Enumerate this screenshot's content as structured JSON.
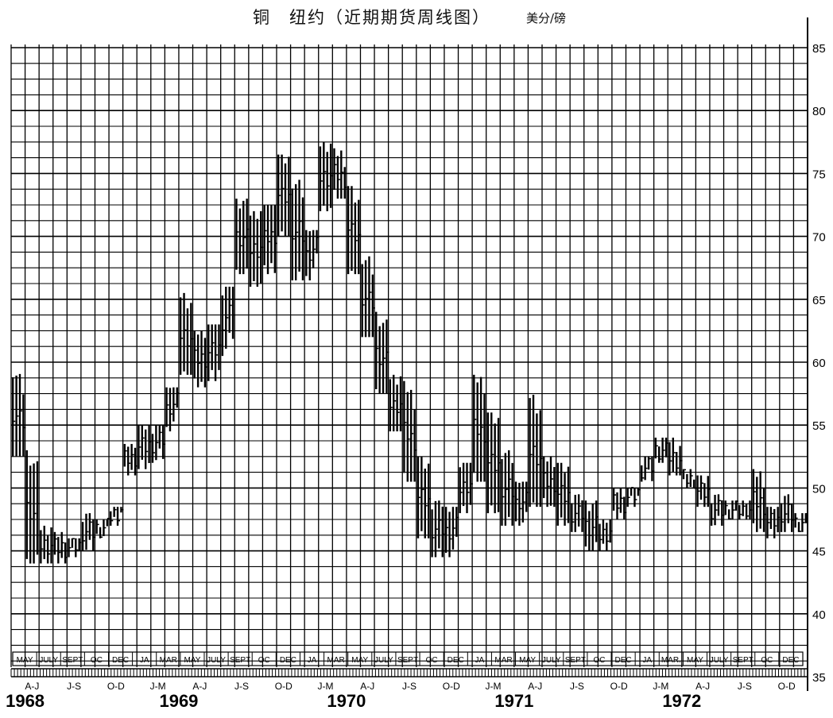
{
  "title": "铜　纽约（近期期货周线图）",
  "unit": "美分/磅",
  "chart_data": {
    "type": "bar",
    "bar_style": "weekly high-low range bars",
    "title": "铜　纽约（近期期货周线图）",
    "ylabel": "美分/磅",
    "ylim": [
      35,
      85
    ],
    "yticks": [
      35,
      40,
      45,
      50,
      55,
      60,
      65,
      70,
      75,
      80,
      85
    ],
    "ytick_labels": [
      "35",
      "40",
      "45",
      "50",
      "55",
      "60",
      "65",
      "70",
      "75",
      "80",
      "85"
    ],
    "y_axis_side": "right",
    "grid": true,
    "contract_months": [
      "MAY",
      "JULY",
      "SEPT",
      "OC",
      "DEC",
      "JA",
      "MAR",
      "MAY",
      "JULY",
      "SEPT",
      "OC",
      "DEC",
      "JA",
      "MAR",
      "MAY",
      "JULY",
      "SEPT",
      "OC",
      "DEC",
      "JA",
      "MAR",
      "MAY",
      "JULY",
      "SEPT",
      "OC",
      "DEC",
      "JA",
      "MAR.",
      "MAY",
      "JULY",
      "SEPT",
      "OC",
      "DEC"
    ],
    "quarter_labels": [
      "A-J",
      "J-S",
      "O-D",
      "J-M",
      "A-J",
      "J-S",
      "O-D",
      "J-M",
      "A-J",
      "J-S",
      "O-D",
      "J-M",
      "A-J",
      "J-S",
      "O-D",
      "J-M",
      "A-J",
      "J-S",
      "O-D"
    ],
    "year_labels": [
      "1968",
      "1969",
      "1970",
      "1971",
      "1972"
    ],
    "x_start": "1968-04",
    "x_end": "1972-12",
    "series": [
      {
        "x": [
          "1968-04",
          "1968-05",
          "1968-06",
          "1968-07",
          "1968-08",
          "1968-09",
          "1968-10",
          "1968-11",
          "1968-12",
          "1969-01",
          "1969-02",
          "1969-03",
          "1969-04",
          "1969-05",
          "1969-06",
          "1969-07",
          "1969-08",
          "1969-09",
          "1969-10",
          "1969-11",
          "1969-12",
          "1970-01",
          "1970-02",
          "1970-03",
          "1970-04",
          "1970-05",
          "1970-06",
          "1970-07",
          "1970-08",
          "1970-09",
          "1970-10",
          "1970-11",
          "1970-12",
          "1971-01",
          "1971-02",
          "1971-03",
          "1971-04",
          "1971-05",
          "1971-06",
          "1971-07",
          "1971-08",
          "1971-09",
          "1971-10",
          "1971-11",
          "1971-12",
          "1972-01",
          "1972-02",
          "1972-03",
          "1972-04",
          "1972-05",
          "1972-06",
          "1972-07",
          "1972-08",
          "1972-09",
          "1972-10",
          "1972-11",
          "1972-12"
        ],
        "high": [
          59.5,
          53,
          47,
          46.5,
          46,
          48,
          47.5,
          48.5,
          53.5,
          55,
          55,
          58,
          65.5,
          62.5,
          63,
          66,
          73,
          72,
          72.5,
          76.5,
          74.5,
          70.5,
          77.5,
          77,
          74,
          68.5,
          64,
          59,
          58.5,
          52.5,
          49,
          48.5,
          52,
          59,
          56,
          53,
          50.5,
          57.5,
          52.5,
          52,
          49.5,
          49,
          47.5,
          50,
          50,
          52.5,
          54,
          54,
          51.5,
          51,
          49.5,
          49,
          49,
          51.5,
          48.5,
          49.5,
          48
        ],
        "low": [
          52.5,
          44,
          44,
          44,
          44.5,
          45,
          46,
          47,
          51,
          51.5,
          52,
          54.5,
          59,
          58,
          58.5,
          60.5,
          67,
          66,
          67,
          70,
          66.5,
          66.5,
          72,
          73,
          67,
          62,
          57.5,
          54.5,
          50.5,
          46,
          44.5,
          44.5,
          48,
          50.5,
          48,
          47,
          47,
          48.5,
          48.5,
          47,
          46.5,
          45,
          45,
          47.5,
          48.5,
          50.5,
          52,
          51,
          50,
          48.5,
          47,
          47.5,
          47.5,
          46.5,
          46,
          46.5,
          46.5
        ]
      }
    ]
  }
}
